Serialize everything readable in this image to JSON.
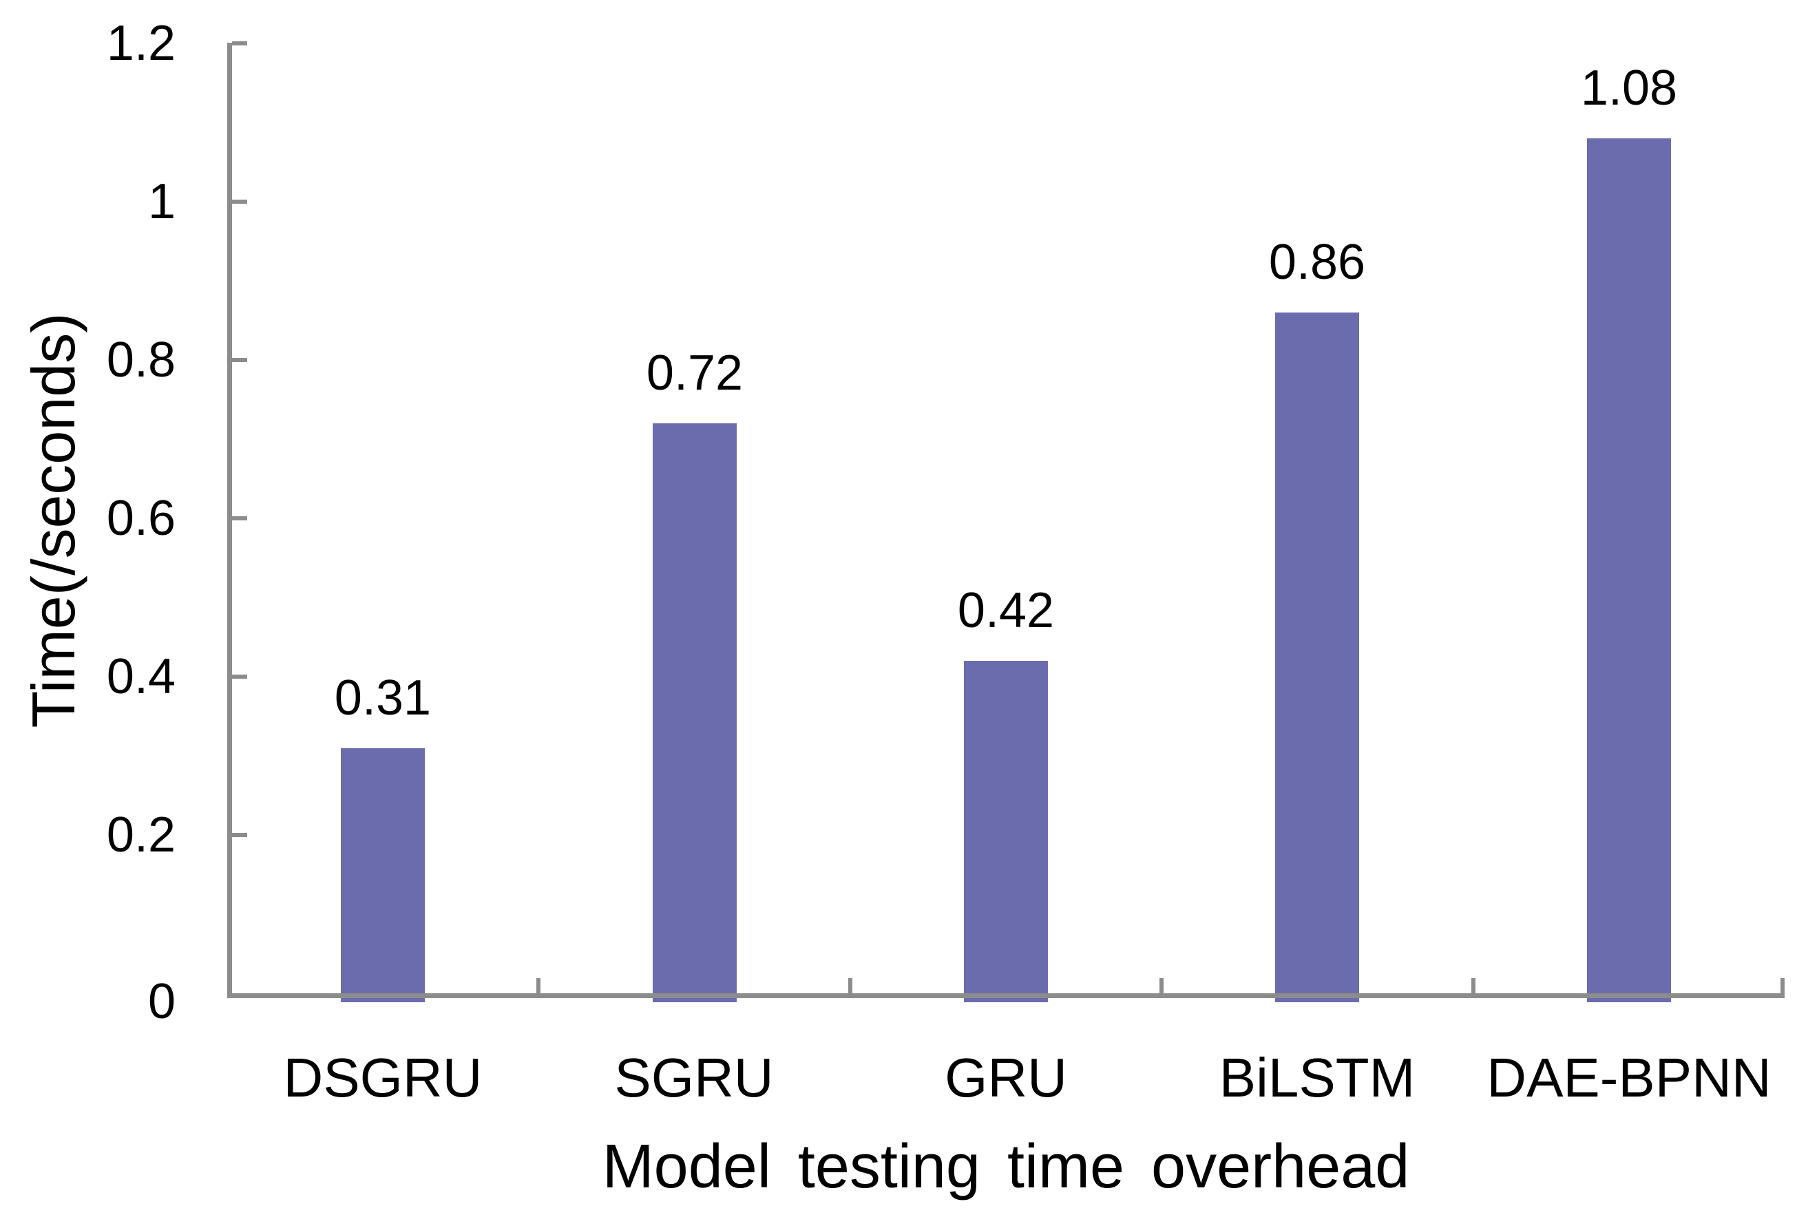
{
  "chart_data": {
    "type": "bar",
    "title": "",
    "categories": [
      "DSGRU",
      "SGRU",
      "GRU",
      "BiLSTM",
      "DAE-BPNN"
    ],
    "values": [
      0.31,
      0.72,
      0.42,
      0.86,
      1.08
    ],
    "data_labels": [
      "0.31",
      "0.72",
      "0.42",
      "0.86",
      "1.08"
    ],
    "xlabel": "Model testing time overhead",
    "ylabel": "Time(/seconds)",
    "ylim": [
      0,
      1.2
    ],
    "ytick_step": 0.2,
    "ytick_labels": [
      "0",
      "0.2",
      "0.4",
      "0.6",
      "0.8",
      "1",
      "1.2"
    ],
    "grid": false,
    "legend_position": "none",
    "colors": {
      "bar": "#6A6CAD",
      "axis": "#8C8C8C",
      "text": "#000000",
      "background": "#FFFFFF"
    }
  }
}
